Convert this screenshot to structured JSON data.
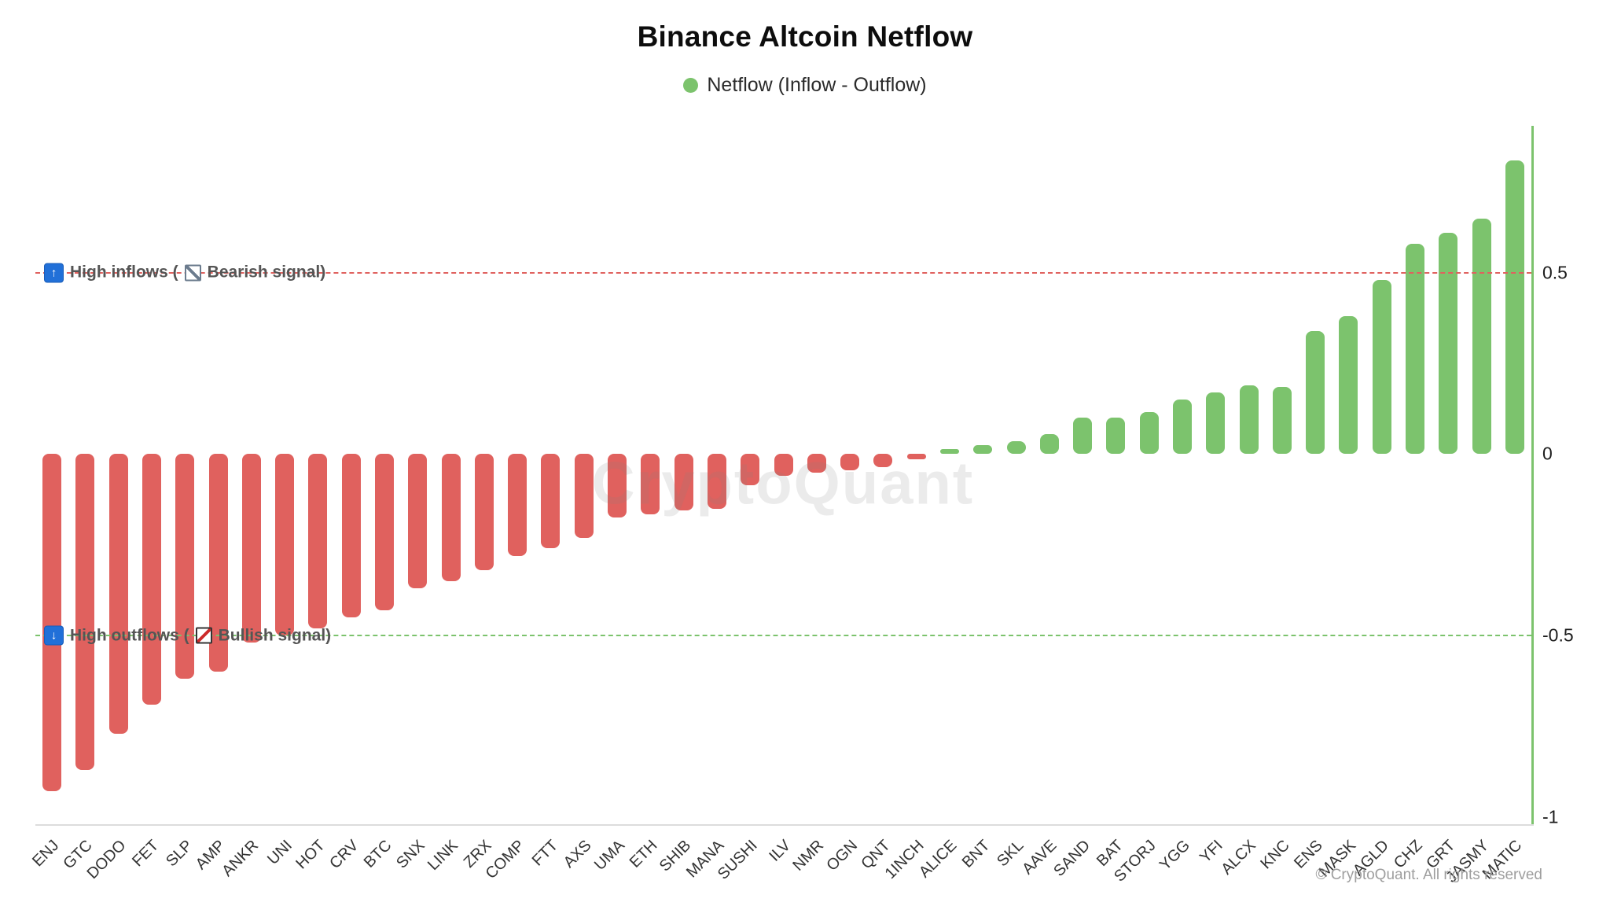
{
  "header": {
    "title": "Binance Altcoin Netflow",
    "legend_label": "Netflow (Inflow - Outflow)"
  },
  "annotations": {
    "inflow": {
      "arrow": "↑",
      "text_before": "High inflows (",
      "text_after": "Bearish signal)",
      "value": 0.5,
      "line_color": "#e0615e"
    },
    "outflow": {
      "arrow": "↓",
      "text_before": "High outflows (",
      "text_after": "Bullish signal)",
      "value": -0.5,
      "line_color": "#7cc36d"
    }
  },
  "axis": {
    "y_ticks": [
      {
        "label": "0.5",
        "value": 0.5
      },
      {
        "label": "0",
        "value": 0
      },
      {
        "label": "-0.5",
        "value": -0.5
      },
      {
        "label": "-1",
        "value": -1
      }
    ],
    "axis_color": "#7cc36d"
  },
  "chart_data": {
    "type": "bar",
    "title": "Binance Altcoin Netflow",
    "legend": [
      "Netflow (Inflow - Outflow)"
    ],
    "legend_position": "top-center",
    "grid": false,
    "xlabel": "",
    "ylabel": "",
    "ylim": [
      -1.02,
      0.905
    ],
    "categories": [
      "ENJ",
      "GTC",
      "DODO",
      "FET",
      "SLP",
      "AMP",
      "ANKR",
      "UNI",
      "HOT",
      "CRV",
      "BTC",
      "SNX",
      "LINK",
      "ZRX",
      "COMP",
      "FTT",
      "AXS",
      "UMA",
      "ETH",
      "SHIB",
      "MANA",
      "SUSHI",
      "ILV",
      "NMR",
      "OGN",
      "QNT",
      "1INCH",
      "ALICE",
      "BNT",
      "SKL",
      "AAVE",
      "SAND",
      "BAT",
      "STORJ",
      "YGG",
      "YFI",
      "ALCX",
      "KNC",
      "ENS",
      "MASK",
      "AGLD",
      "CHZ",
      "GRT",
      "JASMY",
      "MATIC"
    ],
    "values": [
      -0.93,
      -0.87,
      -0.77,
      -0.69,
      -0.62,
      -0.6,
      -0.52,
      -0.5,
      -0.48,
      -0.45,
      -0.43,
      -0.37,
      -0.35,
      -0.32,
      -0.28,
      -0.26,
      -0.23,
      -0.175,
      -0.165,
      -0.155,
      -0.15,
      -0.085,
      -0.06,
      -0.05,
      -0.045,
      -0.035,
      -0.015,
      0.015,
      0.025,
      0.035,
      0.055,
      0.1,
      0.1,
      0.115,
      0.15,
      0.17,
      0.19,
      0.185,
      0.34,
      0.38,
      0.48,
      0.58,
      0.61,
      0.65,
      0.81
    ],
    "positive_color": "#7cc36d",
    "negative_color": "#e0615e",
    "reference_lines": [
      {
        "value": 0.5,
        "style": "dashed",
        "color": "#e0615e",
        "label": "High inflows (Bearish signal)"
      },
      {
        "value": -0.5,
        "style": "dashed",
        "color": "#7cc36d",
        "label": "High outflows (Bullish signal)"
      }
    ]
  },
  "watermark": {
    "center": "CryptoQuant",
    "copyright": "© CryptoQuant. All rights reserved"
  }
}
